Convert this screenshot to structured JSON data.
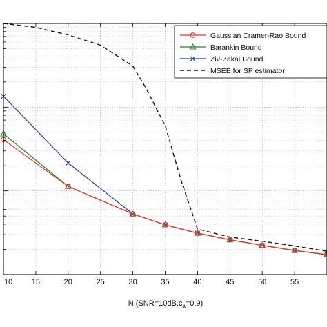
{
  "chart_data": {
    "type": "line",
    "xlabel": "N (SNR=10dB,c",
    "xlabel_sub": "a",
    "xlabel_tail": "=0.9)",
    "xlim": [
      10,
      60
    ],
    "ylog": true,
    "ylim": [
      0.001,
      1
    ],
    "x_ticks": [
      10,
      15,
      20,
      25,
      30,
      35,
      40,
      45,
      50,
      55
    ],
    "x_tick_labels": [
      "10",
      "15",
      "20",
      "25",
      "30",
      "35",
      "40",
      "45",
      "50",
      "55"
    ],
    "grid": true,
    "legend_position": "top-right",
    "series": [
      {
        "name": "Gaussian Cramer-Rao Bound",
        "color": "#e8322b",
        "marker": "circle",
        "dash": "solid",
        "x": [
          10,
          20,
          30,
          35,
          40,
          45,
          50,
          55,
          60
        ],
        "y": [
          0.041,
          0.0113,
          0.0053,
          0.00393,
          0.00312,
          0.0026,
          0.00223,
          0.00194,
          0.00173
        ]
      },
      {
        "name": "Barankin Bound",
        "color": "#1f8a2e",
        "marker": "triangle",
        "dash": "solid",
        "x": [
          10,
          20,
          30,
          35,
          40,
          45,
          50,
          55,
          60
        ],
        "y": [
          0.048,
          0.0113,
          0.0053,
          0.00393,
          0.00312,
          0.0026,
          0.00223,
          0.00194,
          0.00173
        ]
      },
      {
        "name": "Ziv-Zakai Bound",
        "color": "#2a3a8c",
        "marker": "x",
        "dash": "solid",
        "x": [
          10,
          20,
          30,
          35,
          40,
          45,
          50,
          55,
          60
        ],
        "y": [
          0.135,
          0.0215,
          0.0053,
          0.00393,
          0.00312,
          0.0026,
          0.00223,
          0.00194,
          0.00173
        ]
      },
      {
        "name": "MSEE for SP estimator",
        "color": "#111111",
        "marker": "none",
        "dash": "dashed",
        "x": [
          10,
          15,
          20,
          25,
          30,
          32,
          35,
          37.5,
          40,
          45,
          50,
          55,
          60
        ],
        "y": [
          1.0,
          0.9,
          0.73,
          0.55,
          0.31,
          0.17,
          0.06,
          0.013,
          0.0035,
          0.0028,
          0.0025,
          0.0022,
          0.0019
        ]
      }
    ]
  }
}
